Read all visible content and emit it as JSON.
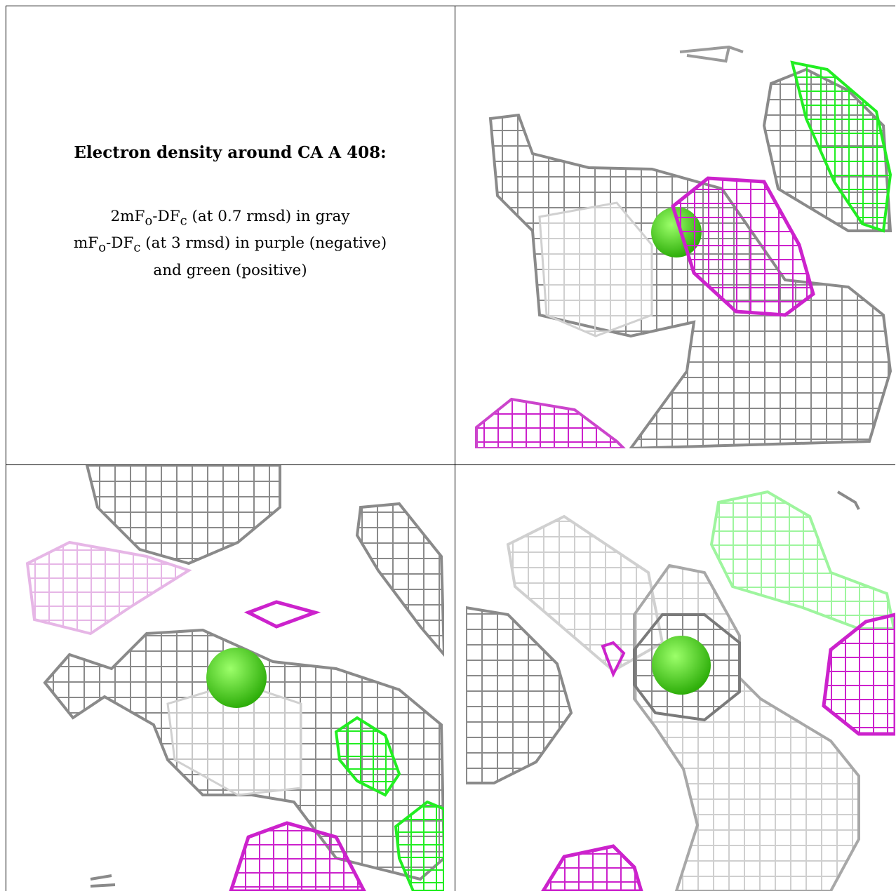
{
  "caption": {
    "title": "Electron density around CA A 408:",
    "line1_a": "2mF",
    "line1_sub_o": "o",
    "line1_b": "-DF",
    "line1_sub_c": "c",
    "line1_c": " (at 0.7 rmsd) in gray",
    "line2_a": "mF",
    "line2_sub_o": "o",
    "line2_b": "-DF",
    "line2_sub_c": "c",
    "line2_c": " (at 3 rmsd) in purple (negative)",
    "line3": "and green (positive)"
  },
  "panels": [
    {
      "id": "top-right",
      "label": "density-view-1"
    },
    {
      "id": "bottom-left",
      "label": "density-view-2"
    },
    {
      "id": "bottom-right",
      "label": "density-view-3"
    }
  ],
  "colors": {
    "gray_mesh": "#8a8a8a",
    "negative_mesh": "#cc22cc",
    "positive_mesh": "#22ee22",
    "ion_sphere": "#44dd11"
  }
}
